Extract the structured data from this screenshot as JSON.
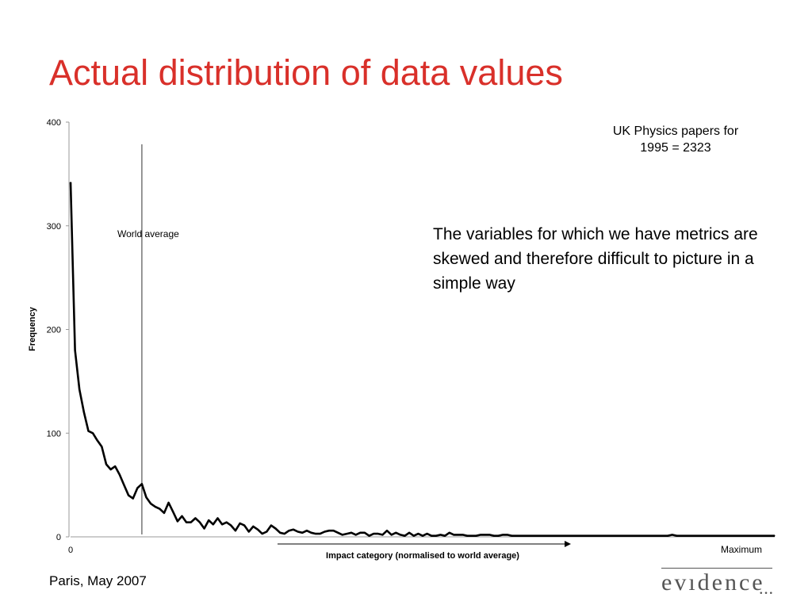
{
  "slide": {
    "title": "Actual distribution of data values",
    "note_top_line1": "UK Physics papers for",
    "note_top_line2": "1995 = 2323",
    "note_body": "The variables for which we have metrics are skewed and therefore difficult to picture in a simple way",
    "footer": "Paris, May 2007",
    "logo_text": "evıdence",
    "logo_dots": "•••"
  },
  "chart_data": {
    "type": "line",
    "title": "",
    "xlabel": "Impact category (normalised to world average)",
    "ylabel": "Frequency",
    "ylim": [
      0,
      400
    ],
    "yticks": [
      0,
      100,
      200,
      300,
      400
    ],
    "x_tick_labels": {
      "start": "0",
      "end": "Maximum"
    },
    "grid": false,
    "reference_line": {
      "label": "World average",
      "x": 16
    },
    "x": [
      0,
      1,
      2,
      3,
      4,
      5,
      6,
      7,
      8,
      9,
      10,
      11,
      12,
      13,
      14,
      15,
      16,
      17,
      18,
      19,
      20,
      21,
      22,
      23,
      24,
      25,
      26,
      27,
      28,
      29,
      30,
      31,
      32,
      33,
      34,
      35,
      36,
      37,
      38,
      39,
      40,
      41,
      42,
      43,
      44,
      45,
      46,
      47,
      48,
      49,
      50,
      51,
      52,
      53,
      54,
      55,
      56,
      57,
      58,
      59,
      60,
      61,
      62,
      63,
      64,
      65,
      66,
      67,
      68,
      69,
      70,
      71,
      72,
      73,
      74,
      75,
      76,
      77,
      78,
      79,
      80,
      81,
      82,
      83,
      84,
      85,
      86,
      87,
      88,
      89,
      90,
      91,
      92,
      93,
      94,
      95,
      96,
      97,
      98,
      99,
      100,
      101,
      102,
      103,
      104,
      105,
      106,
      107,
      108,
      109,
      110,
      111,
      112,
      113,
      114,
      115,
      116,
      117,
      118,
      119,
      120,
      121,
      122,
      123,
      124,
      125,
      126,
      127,
      128,
      129,
      130,
      131,
      132,
      133,
      134,
      135,
      136,
      137,
      138,
      139,
      140,
      141,
      142,
      143,
      144,
      145,
      146,
      147,
      148,
      149,
      150,
      151,
      152,
      153,
      154,
      155,
      156,
      157,
      158
    ],
    "series": [
      {
        "values": [
          342,
          180,
          142,
          120,
          102,
          100,
          93,
          87,
          70,
          65,
          68,
          60,
          50,
          40,
          37,
          47,
          51,
          38,
          32,
          29,
          27,
          23,
          33,
          24,
          15,
          20,
          14,
          14,
          18,
          14,
          8,
          16,
          12,
          18,
          12,
          14,
          11,
          6,
          13,
          11,
          5,
          10,
          7,
          3,
          5,
          11,
          8,
          4,
          3,
          6,
          7,
          5,
          4,
          6,
          4,
          3,
          3,
          5,
          6,
          6,
          4,
          2,
          3,
          4,
          2,
          4,
          4,
          1,
          3,
          3,
          2,
          6,
          2,
          4,
          2,
          1,
          4,
          1,
          3,
          1,
          3,
          1,
          1,
          2,
          1,
          4,
          2,
          2,
          2,
          1,
          1,
          1,
          2,
          2,
          2,
          1,
          1,
          2,
          2,
          1,
          1,
          1,
          1,
          1,
          1,
          1,
          1,
          1,
          1,
          1,
          1,
          1,
          1,
          1,
          1,
          1,
          1,
          1,
          1,
          1,
          1,
          1,
          1,
          1,
          1,
          1,
          1,
          1,
          1,
          1,
          1,
          1,
          1,
          1,
          1,
          2,
          1,
          1,
          1,
          1,
          1,
          1,
          1,
          1,
          1,
          1,
          1,
          1,
          1,
          1,
          1,
          1,
          1,
          1,
          1,
          1,
          1,
          1,
          1
        ]
      }
    ]
  }
}
